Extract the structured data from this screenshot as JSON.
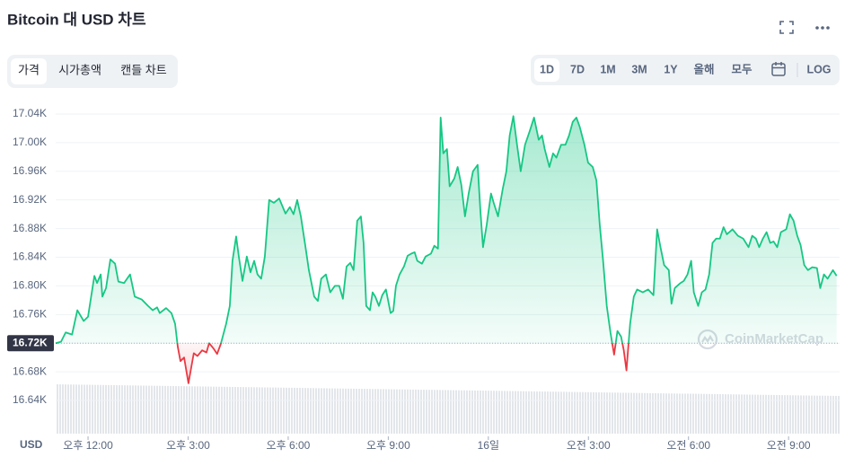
{
  "header": {
    "title": "Bitcoin 대 USD 차트"
  },
  "tabs": [
    "가격",
    "시가총액",
    "캔들 차트"
  ],
  "active_tab": 0,
  "ranges": [
    "1D",
    "7D",
    "1M",
    "3M",
    "1Y",
    "올해",
    "모두"
  ],
  "active_range": 0,
  "log_label": "LOG",
  "watermark": "CoinMarketCap",
  "chart_data": {
    "type": "line",
    "y_label": "USD",
    "color": "#16c784",
    "down_color": "#ea3943",
    "baseline": 16720,
    "grid": true,
    "xlim": [
      11.03,
      34.53
    ],
    "ylim": [
      16620,
      17060
    ],
    "xticks": [
      {
        "value": 12,
        "label": "오후 12:00"
      },
      {
        "value": 15,
        "label": "오후 3:00"
      },
      {
        "value": 18,
        "label": "오후 6:00"
      },
      {
        "value": 21,
        "label": "오후 9:00"
      },
      {
        "value": 24,
        "label": "16일"
      },
      {
        "value": 27,
        "label": "오전 3:00"
      },
      {
        "value": 30,
        "label": "오전 6:00"
      },
      {
        "value": 33,
        "label": "오전 9:00"
      }
    ],
    "yticks": [
      {
        "value": 16640,
        "label": "16.64K"
      },
      {
        "value": 16680,
        "label": "16.68K"
      },
      {
        "value": 16720,
        "label": "16.72K"
      },
      {
        "value": 16760,
        "label": "16.76K"
      },
      {
        "value": 16800,
        "label": "16.80K"
      },
      {
        "value": 16840,
        "label": "16.84K"
      },
      {
        "value": 16880,
        "label": "16.88K"
      },
      {
        "value": 16920,
        "label": "16.92K"
      },
      {
        "value": 16960,
        "label": "16.96K"
      },
      {
        "value": 17000,
        "label": "17.00K"
      },
      {
        "value": 17040,
        "label": "17.04K"
      }
    ],
    "x": [
      11.03,
      11.19,
      11.33,
      11.52,
      11.68,
      11.87,
      12.0,
      12.19,
      12.27,
      12.38,
      12.43,
      12.54,
      12.67,
      12.81,
      12.91,
      13.08,
      13.26,
      13.4,
      13.61,
      13.8,
      13.94,
      14.07,
      14.15,
      14.34,
      14.5,
      14.61,
      14.69,
      14.77,
      14.88,
      15.01,
      15.17,
      15.28,
      15.42,
      15.55,
      15.63,
      15.77,
      15.87,
      15.98,
      16.14,
      16.25,
      16.33,
      16.44,
      16.52,
      16.63,
      16.76,
      16.87,
      16.98,
      17.08,
      17.19,
      17.3,
      17.43,
      17.57,
      17.73,
      17.92,
      18.05,
      18.16,
      18.27,
      18.38,
      18.51,
      18.62,
      18.78,
      18.89,
      18.99,
      19.13,
      19.26,
      19.4,
      19.53,
      19.64,
      19.75,
      19.86,
      19.96,
      20.07,
      20.18,
      20.26,
      20.34,
      20.45,
      20.53,
      20.61,
      20.72,
      20.82,
      20.93,
      21.07,
      21.15,
      21.23,
      21.34,
      21.47,
      21.58,
      21.69,
      21.79,
      21.87,
      22.01,
      22.12,
      22.28,
      22.38,
      22.49,
      22.57,
      22.65,
      22.76,
      22.84,
      22.98,
      23.08,
      23.19,
      23.3,
      23.41,
      23.54,
      23.68,
      23.76,
      23.84,
      23.95,
      24.08,
      24.16,
      24.29,
      24.43,
      24.54,
      24.64,
      24.75,
      24.86,
      24.97,
      25.1,
      25.24,
      25.37,
      25.51,
      25.61,
      25.69,
      25.83,
      25.94,
      26.04,
      26.18,
      26.31,
      26.42,
      26.53,
      26.64,
      26.74,
      26.88,
      26.99,
      27.13,
      27.24,
      27.34,
      27.44,
      27.55,
      27.66,
      27.77,
      27.87,
      27.98,
      28.06,
      28.14,
      28.25,
      28.36,
      28.46,
      28.63,
      28.79,
      28.95,
      29.06,
      29.16,
      29.27,
      29.41,
      29.49,
      29.59,
      29.76,
      29.86,
      29.97,
      30.08,
      30.16,
      30.29,
      30.4,
      30.51,
      30.62,
      30.72,
      30.83,
      30.94,
      31.05,
      31.15,
      31.32,
      31.48,
      31.64,
      31.8,
      31.91,
      32.02,
      32.12,
      32.23,
      32.34,
      32.45,
      32.55,
      32.66,
      32.77,
      32.93,
      33.04,
      33.15,
      33.26,
      33.36,
      33.47,
      33.58,
      33.71,
      33.85,
      33.95,
      34.06,
      34.17,
      34.33,
      34.44
    ],
    "values": [
      16720,
      16722,
      16735,
      16732,
      16766,
      16751,
      16757,
      16814,
      16804,
      16816,
      16785,
      16797,
      16837,
      16831,
      16806,
      16804,
      16816,
      16785,
      16781,
      16772,
      16766,
      16770,
      16762,
      16769,
      16762,
      16747,
      16715,
      16695,
      16700,
      16664,
      16706,
      16702,
      16710,
      16707,
      16720,
      16712,
      16705,
      16719,
      16747,
      16772,
      16835,
      16869,
      16841,
      16807,
      16841,
      16819,
      16835,
      16816,
      16810,
      16841,
      16920,
      16916,
      16922,
      16901,
      16910,
      16900,
      16920,
      16897,
      16857,
      16822,
      16785,
      16779,
      16810,
      16816,
      16791,
      16800,
      16800,
      16782,
      16827,
      16832,
      16822,
      16891,
      16897,
      16860,
      16772,
      16766,
      16791,
      16785,
      16772,
      16787,
      16795,
      16762,
      16765,
      16800,
      16816,
      16827,
      16842,
      16845,
      16847,
      16835,
      16831,
      16841,
      16845,
      16856,
      16852,
      17035,
      16985,
      16991,
      16939,
      16950,
      16966,
      16941,
      16897,
      16929,
      16960,
      16969,
      16906,
      16854,
      16885,
      16929,
      16916,
      16897,
      16935,
      16960,
      17010,
      17037,
      16997,
      16960,
      16997,
      17016,
      17035,
      17004,
      17010,
      16991,
      16966,
      16985,
      16979,
      16997,
      16997,
      17010,
      17029,
      17035,
      17022,
      16997,
      16972,
      16966,
      16947,
      16885,
      16835,
      16772,
      16735,
      16704,
      16737,
      16729,
      16710,
      16682,
      16747,
      16785,
      16795,
      16791,
      16795,
      16787,
      16879,
      16854,
      16829,
      16822,
      16775,
      16797,
      16804,
      16807,
      16816,
      16835,
      16791,
      16772,
      16791,
      16795,
      16816,
      16860,
      16866,
      16866,
      16882,
      16872,
      16879,
      16870,
      16866,
      16854,
      16870,
      16866,
      16854,
      16866,
      16875,
      16860,
      16862,
      16854,
      16875,
      16879,
      16900,
      16891,
      16870,
      16857,
      16829,
      16822,
      16826,
      16825,
      16797,
      16816,
      16810,
      16822,
      16814
    ]
  }
}
